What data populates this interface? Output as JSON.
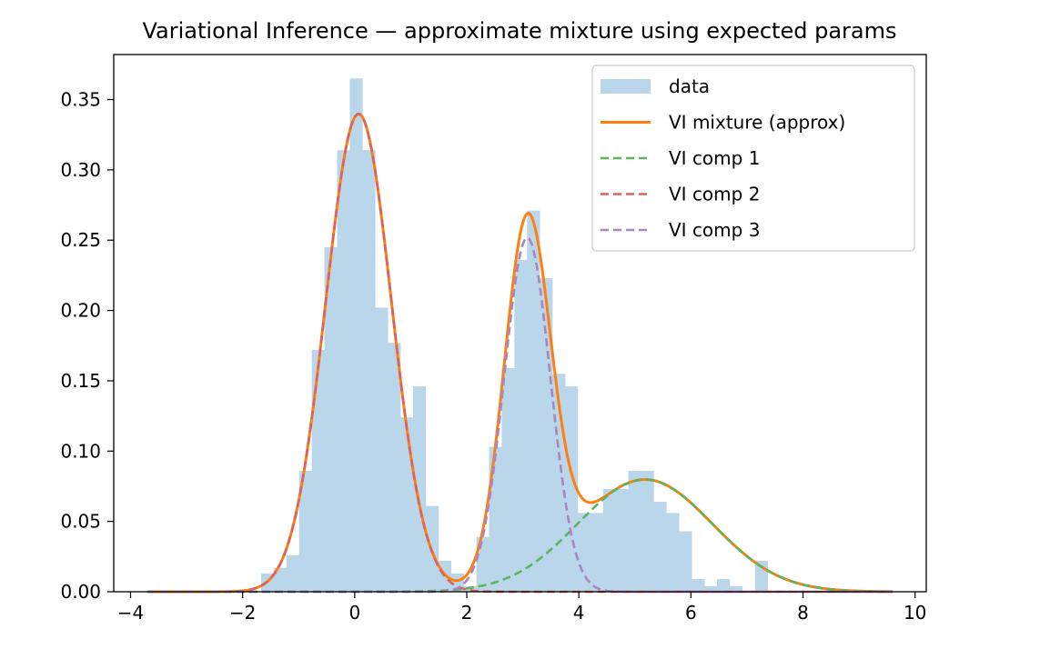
{
  "chart_data": {
    "type": "bar",
    "title": "Variational Inference — approximate mixture using expected params",
    "xlabel": "",
    "ylabel": "",
    "xlim": [
      -4.3,
      10.2
    ],
    "ylim": [
      0.0,
      0.382
    ],
    "x_ticks": [
      -4,
      -2,
      0,
      2,
      4,
      6,
      8,
      10
    ],
    "x_tick_labels": [
      "−4",
      "−2",
      "0",
      "2",
      "4",
      "6",
      "8",
      "10"
    ],
    "y_ticks": [
      0.0,
      0.05,
      0.1,
      0.15,
      0.2,
      0.25,
      0.3,
      0.35
    ],
    "y_tick_labels": [
      "0.00",
      "0.05",
      "0.10",
      "0.15",
      "0.20",
      "0.25",
      "0.30",
      "0.35"
    ],
    "grid": false,
    "legend_position": "top-right",
    "histogram": {
      "name": "data",
      "color": "#bad6ea",
      "bin_width": 0.226,
      "bin_edges_start": -1.67,
      "heights": [
        0.013,
        0.017,
        0.026,
        0.086,
        0.172,
        0.245,
        0.314,
        0.365,
        0.314,
        0.202,
        0.177,
        0.124,
        0.146,
        0.061,
        0.022,
        0.013,
        0.004,
        0.039,
        0.103,
        0.159,
        0.236,
        0.271,
        0.223,
        0.155,
        0.146,
        0.056,
        0.056,
        0.073,
        0.073,
        0.086,
        0.086,
        0.064,
        0.056,
        0.043,
        0.009,
        0.004,
        0.009,
        0.004,
        0.0,
        0.022
      ]
    },
    "components": [
      {
        "name": "VI comp 1",
        "color": "#5db45a",
        "weight": 0.24,
        "mean": 5.18,
        "sd": 1.2
      },
      {
        "name": "VI comp 2",
        "color": "#d96362",
        "weight": 0.5,
        "mean": 0.07,
        "sd": 0.587
      },
      {
        "name": "VI comp 3",
        "color": "#a886c4",
        "weight": 0.26,
        "mean": 3.08,
        "sd": 0.412
      }
    ],
    "mixture": {
      "name": "VI mixture (approx)",
      "color": "#ff7f0e"
    },
    "curve_x_range": [
      -3.7,
      9.6
    ]
  },
  "legend": {
    "items": [
      {
        "label": "data",
        "style": "patch",
        "color": "#bad6ea"
      },
      {
        "label": "VI mixture (approx)",
        "style": "solid",
        "color": "#ff7f0e"
      },
      {
        "label": "VI comp 1",
        "style": "dashed",
        "color": "#5db45a"
      },
      {
        "label": "VI comp 2",
        "style": "dashed",
        "color": "#d96362"
      },
      {
        "label": "VI comp 3",
        "style": "dashed",
        "color": "#a886c4"
      }
    ]
  }
}
